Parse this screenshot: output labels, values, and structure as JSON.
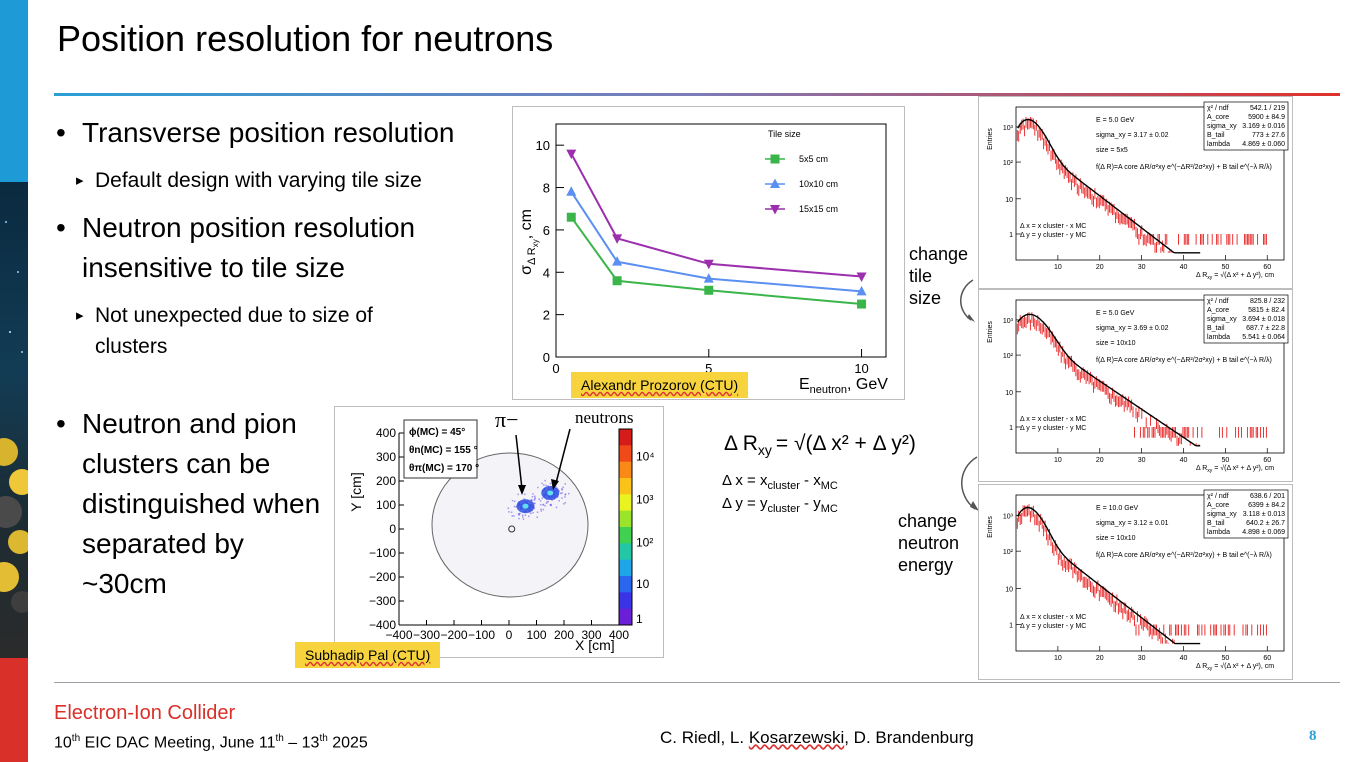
{
  "slide": {
    "title": "Position resolution for neutrons",
    "colors": {
      "accent_blue": "#2a9fd6",
      "accent_red": "#d9302a",
      "credit_yellow": "#f7d33e"
    }
  },
  "bullets": [
    {
      "text": "Transverse position resolution",
      "sub": "Default design with varying tile size"
    },
    {
      "text": "Neutron position resolution insensitive to tile size",
      "sub": "Not unexpected due to size of clusters"
    },
    {
      "text": "Neutron and pion clusters can be distinguished when separated by ~30cm"
    }
  ],
  "chart_data": [
    {
      "type": "line",
      "xlabel": "E",
      "xlabel_sub": "neutron",
      "xlabel_unit": ", GeV",
      "ylabel": "σ",
      "ylabel_sub": "Δ R",
      "ylabel_subsub": "xy",
      "ylabel_unit": ", cm",
      "xlim": [
        0,
        10.8
      ],
      "ylim": [
        0,
        11
      ],
      "xticks": [
        "0",
        "5",
        "10"
      ],
      "yticks": [
        "0",
        "2",
        "4",
        "6",
        "8",
        "10"
      ],
      "legend_title": "Tile size",
      "legend_position": "top-right",
      "series": [
        {
          "name": "5x5 cm",
          "color": "#3ab54a",
          "marker": "square",
          "x": [
            0.5,
            2,
            5,
            10
          ],
          "values": [
            6.6,
            3.6,
            3.15,
            2.5
          ]
        },
        {
          "name": "10x10 cm",
          "color": "#5b8ff2",
          "marker": "triangle-up",
          "x": [
            0.5,
            2,
            5,
            10
          ],
          "values": [
            7.8,
            4.5,
            3.7,
            3.1
          ]
        },
        {
          "name": "15x15 cm",
          "color": "#9b2fae",
          "marker": "triangle-down",
          "x": [
            0.5,
            2,
            5,
            10
          ],
          "values": [
            9.6,
            5.6,
            4.4,
            3.8
          ]
        }
      ],
      "credit": "Alexandr Prozorov (CTU)"
    },
    {
      "type": "heatmap",
      "xlabel": "X [cm]",
      "ylabel": "Y [cm]",
      "xlim": [
        -400,
        400
      ],
      "ylim": [
        -400,
        400
      ],
      "xticks": [
        "−400",
        "−300",
        "−200",
        "−100",
        "0",
        "100",
        "200",
        "300",
        "400"
      ],
      "yticks": [
        "400",
        "300",
        "200",
        "100",
        "0",
        "−100",
        "−200",
        "−300",
        "−400"
      ],
      "colorbar_ticks": [
        "10⁴",
        "10³",
        "10²",
        "10",
        "1"
      ],
      "info_box": [
        "ϕ(MC) = 45°",
        "θn(MC) = 155 °",
        "θπ(MC) = 170 °"
      ],
      "annotations": [
        "π−",
        "neutrons"
      ],
      "clusters": [
        {
          "label": "π−",
          "x": 60,
          "y": 95
        },
        {
          "label": "neutrons",
          "x": 150,
          "y": 150
        }
      ],
      "credit": "Subhadip Pal (CTU)"
    },
    {
      "type": "histogram",
      "xlabel": "Δ R",
      "xlabel_sub": "xy",
      "xlabel_rest": " = √(Δ x² + Δ y²), cm",
      "ylabel": "Entries",
      "xticks": [
        "10",
        "20",
        "30",
        "40",
        "50",
        "60"
      ],
      "yticks": [
        "10³",
        "10²",
        "10",
        "1"
      ],
      "text": [
        "E = 5.0 GeV",
        "sigma_xy = 3.17 ± 0.02",
        "size = 5x5"
      ],
      "fit_formula": "f(Δ R)=A core ΔR/σ²xy e^(−ΔR²/2σ²xy) + B tail e^(−λ R/λ)",
      "defs": [
        "Δ x = x cluster - x MC",
        "Δ y = y cluster - y MC"
      ],
      "stats": [
        [
          "χ² / ndf",
          "542.1 / 219"
        ],
        [
          "A_core",
          "5900 ± 84.9"
        ],
        [
          "sigma_xy",
          "3.169 ± 0.016"
        ],
        [
          "B_tail",
          "773 ± 27.6"
        ],
        [
          "lambda",
          "4.869 ± 0.060"
        ]
      ]
    },
    {
      "type": "histogram",
      "xlabel": "Δ R",
      "xlabel_sub": "xy",
      "xlabel_rest": " = √(Δ x² + Δ y²), cm",
      "ylabel": "Entries",
      "xticks": [
        "10",
        "20",
        "30",
        "40",
        "50",
        "60"
      ],
      "yticks": [
        "10³",
        "10²",
        "10",
        "1"
      ],
      "text": [
        "E = 5.0 GeV",
        "sigma_xy = 3.69 ± 0.02",
        "size = 10x10"
      ],
      "fit_formula": "f(Δ R)=A core ΔR/σ²xy e^(−ΔR²/2σ²xy) + B tail e^(−λ R/λ)",
      "defs": [
        "Δ x = x cluster - x MC",
        "Δ y = y cluster - y MC"
      ],
      "stats": [
        [
          "χ² / ndf",
          "825.8 / 232"
        ],
        [
          "A_core",
          "5815 ± 82.4"
        ],
        [
          "sigma_xy",
          "3.694 ± 0.018"
        ],
        [
          "B_tail",
          "687.7 ± 22.8"
        ],
        [
          "lambda",
          "5.541 ± 0.064"
        ]
      ]
    },
    {
      "type": "histogram",
      "xlabel": "Δ R",
      "xlabel_sub": "xy",
      "xlabel_rest": " = √(Δ x² + Δ y²), cm",
      "ylabel": "Entries",
      "xticks": [
        "10",
        "20",
        "30",
        "40",
        "50",
        "60"
      ],
      "yticks": [
        "10³",
        "10²",
        "10",
        "1"
      ],
      "text": [
        "E = 10.0 GeV",
        "sigma_xy = 3.12 ± 0.01",
        "size = 10x10"
      ],
      "fit_formula": "f(Δ R)=A core ΔR/σ²xy e^(−ΔR²/2σ²xy) + B tail e^(−λ R/λ)",
      "defs": [
        "Δ x = x cluster - x MC",
        "Δ y = y cluster - y MC"
      ],
      "stats": [
        [
          "χ² / ndf",
          "638.6 / 201"
        ],
        [
          "A_core",
          "6399 ± 84.2"
        ],
        [
          "sigma_xy",
          "3.118 ± 0.013"
        ],
        [
          "B_tail",
          "640.2 ± 26.7"
        ],
        [
          "lambda",
          "4.898 ± 0.069"
        ]
      ]
    }
  ],
  "formula": {
    "lhs": "Δ R",
    "lhs_sub": "xy",
    "rhs": "= √(Δ x² + Δ y²)",
    "dx": "Δ x = x",
    "dx_sub1": "cluster",
    "dx_mid": " - x",
    "dx_sub2": "MC",
    "dy": "Δ y = y",
    "dy_sub1": "cluster",
    "dy_mid": " - y",
    "dy_sub2": "MC"
  },
  "side_labels": {
    "change_tile": [
      "change",
      "tile",
      "size"
    ],
    "change_energy": [
      "change",
      "neutron",
      "energy"
    ]
  },
  "footer": {
    "org": "Electron-Ion Collider",
    "meeting_pre": "10",
    "meeting_sup1": "th",
    "meeting_mid": " EIC DAC Meeting, June 11",
    "meeting_sup2": "th",
    "meeting_post": " – 13",
    "meeting_sup3": "th",
    "meeting_end": " 2025",
    "authors_pre": "C. Riedl, L. ",
    "authors_u": "Kosarzewski",
    "authors_post": ", D. Brandenburg",
    "page": "8"
  }
}
